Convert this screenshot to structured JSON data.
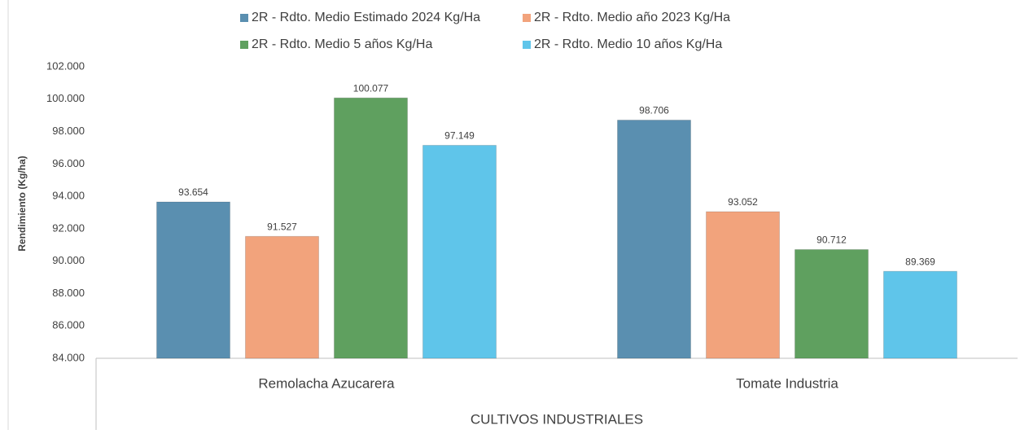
{
  "chart_data": {
    "type": "bar",
    "y_axis_label": "Rendimiento (Kg/ha)",
    "x_axis_group_label": "CULTIVOS INDUSTRIALES",
    "categories": [
      "Remolacha Azucarera",
      "Tomate Industria"
    ],
    "series": [
      {
        "name": "2R - Rdto. Medio Estimado 2024 Kg/Ha",
        "color": "#5a8fb0",
        "values": [
          93654,
          98706
        ],
        "value_labels": [
          "93.654",
          "98.706"
        ]
      },
      {
        "name": "2R - Rdto. Medio año 2023 Kg/Ha",
        "color": "#f2a37c",
        "values": [
          91527,
          93052
        ],
        "value_labels": [
          "91.527",
          "93.052"
        ]
      },
      {
        "name": "2R - Rdto. Medio 5 años Kg/Ha",
        "color": "#5fa05f",
        "values": [
          100077,
          90712
        ],
        "value_labels": [
          "100.077",
          "90.712"
        ]
      },
      {
        "name": "2R - Rdto. Medio 10 años Kg/Ha",
        "color": "#5fc5ea",
        "values": [
          97149,
          89369
        ],
        "value_labels": [
          "97.149",
          "89.369"
        ]
      }
    ],
    "ylim": [
      84000,
      102000
    ],
    "yticks": [
      {
        "value": 84000,
        "label": "84.000"
      },
      {
        "value": 86000,
        "label": "86.000"
      },
      {
        "value": 88000,
        "label": "88.000"
      },
      {
        "value": 90000,
        "label": "90.000"
      },
      {
        "value": 92000,
        "label": "92.000"
      },
      {
        "value": 94000,
        "label": "94.000"
      },
      {
        "value": 96000,
        "label": "96.000"
      },
      {
        "value": 98000,
        "label": "98.000"
      },
      {
        "value": 100000,
        "label": "100.000"
      },
      {
        "value": 102000,
        "label": "102.000"
      }
    ],
    "grid": false
  }
}
